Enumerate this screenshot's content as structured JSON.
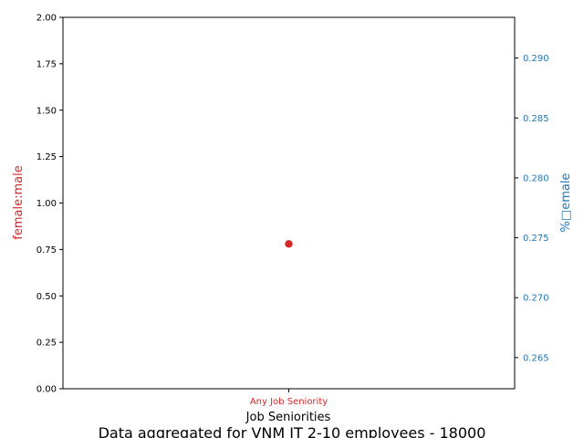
{
  "chart_data": {
    "type": "scatter",
    "title": "",
    "caption": "Data aggregated for VNM IT 2-10 employees - 18000",
    "xlabel": "Job Seniorities",
    "categories": [
      "Any Job Seniority"
    ],
    "left_axis": {
      "label": "female:male",
      "color": "#d62728",
      "ylim": [
        0,
        2
      ],
      "ticks": [
        "0.00",
        "0.25",
        "0.50",
        "0.75",
        "1.00",
        "1.25",
        "1.50",
        "1.75",
        "2.00"
      ],
      "tick_values": [
        0,
        0.25,
        0.5,
        0.75,
        1.0,
        1.25,
        1.5,
        1.75,
        2.0
      ]
    },
    "right_axis": {
      "label": "%□emale",
      "color": "#1f77b4",
      "ylim": [
        0.2624,
        0.2934
      ],
      "ticks": [
        "0.265",
        "0.270",
        "0.275",
        "0.280",
        "0.285",
        "0.290"
      ],
      "tick_values": [
        0.265,
        0.27,
        0.275,
        0.28,
        0.285,
        0.29
      ]
    },
    "series": [
      {
        "axis": "left",
        "color": "#d62728",
        "points": [
          {
            "x": "Any Job Seniority",
            "y": 0.78
          }
        ]
      }
    ],
    "grid": false
  }
}
